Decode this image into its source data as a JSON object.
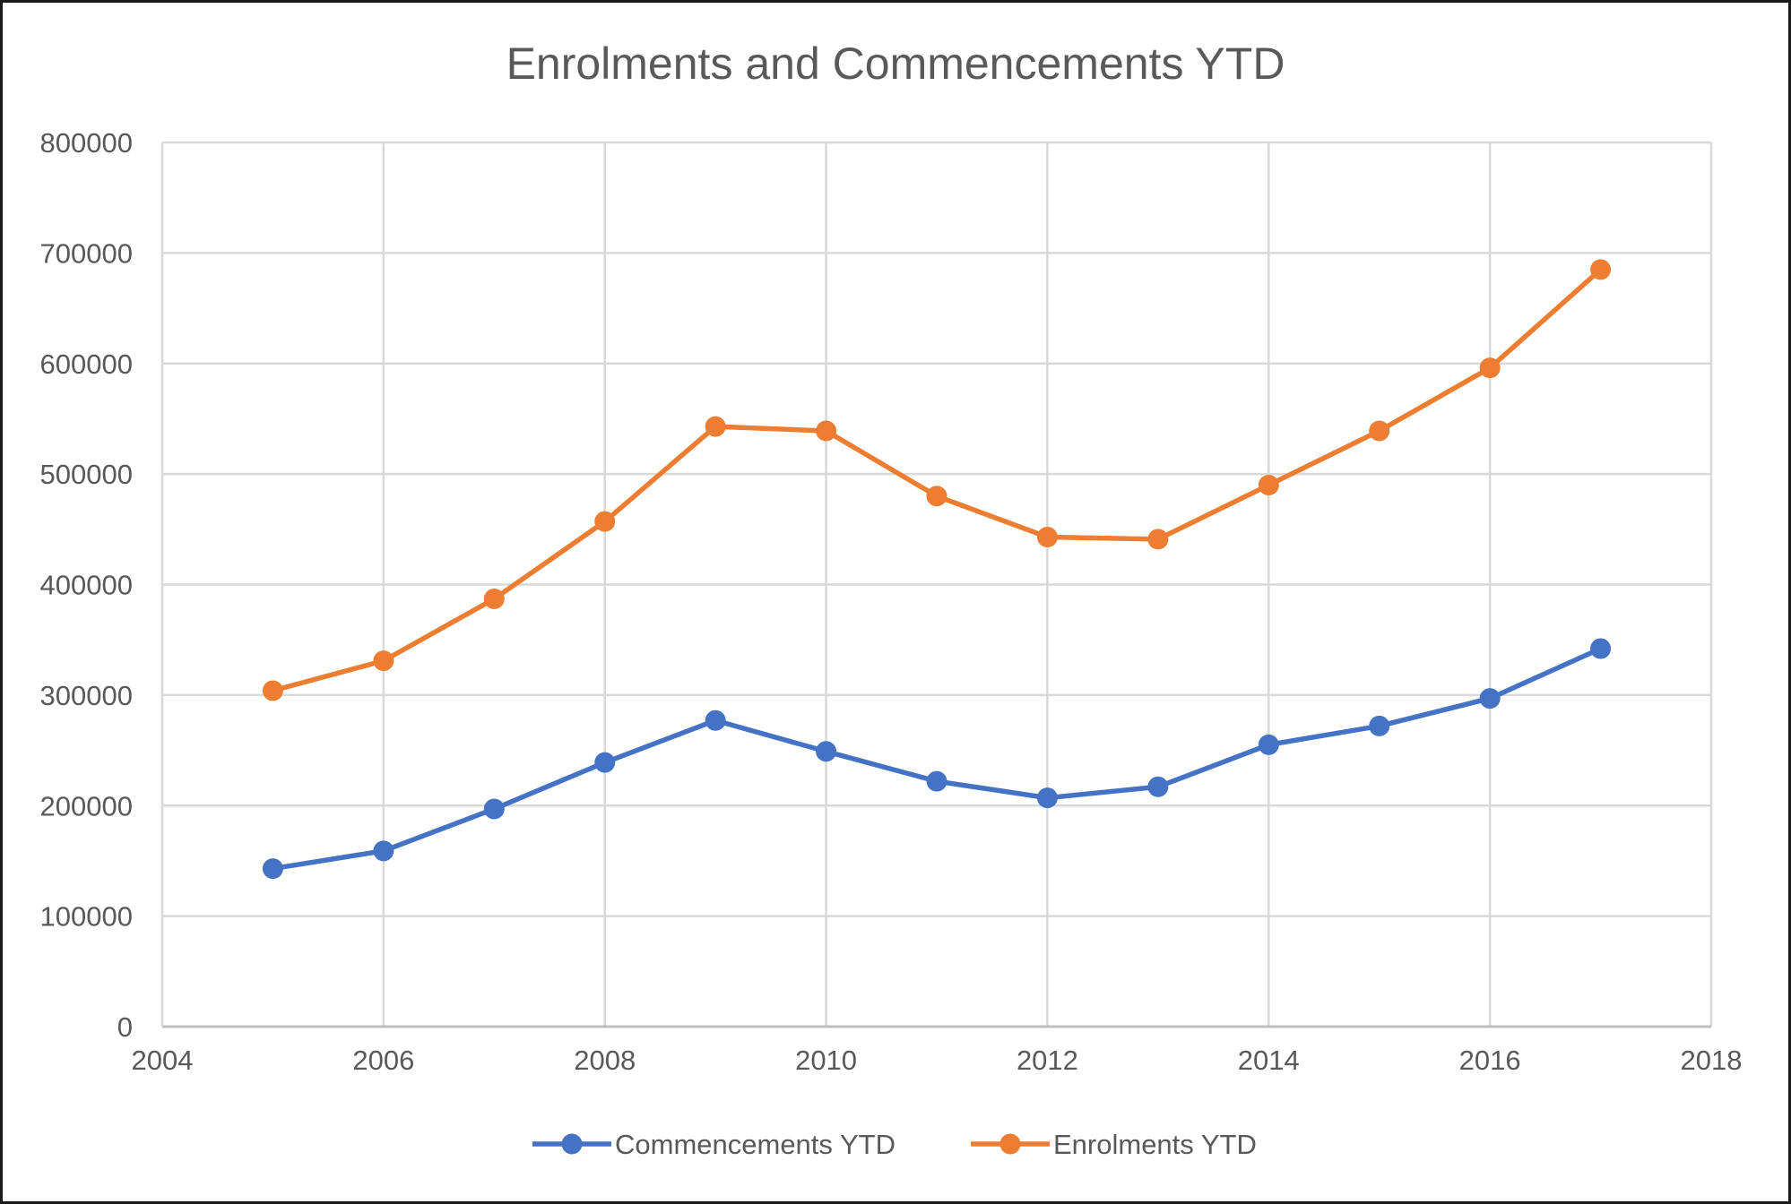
{
  "chart_data": {
    "type": "line",
    "title": "Enrolments and Commencements  YTD",
    "xlabel": "",
    "ylabel": "",
    "xlim": [
      2004,
      2018
    ],
    "ylim": [
      0,
      800000
    ],
    "x_ticks": [
      2004,
      2006,
      2008,
      2010,
      2012,
      2014,
      2016,
      2018
    ],
    "y_ticks": [
      0,
      100000,
      200000,
      300000,
      400000,
      500000,
      600000,
      700000,
      800000
    ],
    "grid": true,
    "legend_position": "bottom",
    "x": [
      2005,
      2006,
      2007,
      2008,
      2009,
      2010,
      2011,
      2012,
      2013,
      2014,
      2015,
      2016,
      2017
    ],
    "series": [
      {
        "name": "Commencements YTD",
        "color": "#4472c4",
        "values": [
          143000,
          159000,
          197000,
          239000,
          277000,
          249000,
          222000,
          207000,
          217000,
          255000,
          272000,
          297000,
          342000
        ]
      },
      {
        "name": "Enrolments YTD",
        "color": "#ed7d31",
        "values": [
          304000,
          331000,
          387000,
          457000,
          543000,
          539000,
          480000,
          443000,
          441000,
          490000,
          539000,
          596000,
          685000
        ]
      }
    ]
  }
}
